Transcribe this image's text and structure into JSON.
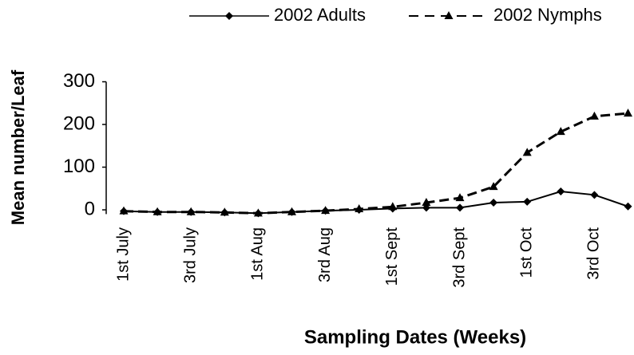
{
  "chart_data": {
    "type": "line",
    "x_label": "Sampling Dates (Weeks)",
    "y_label": "Mean number/Leaf",
    "categories": [
      "1st July",
      null,
      "3rd July",
      null,
      "1st Aug",
      null,
      "3rd Aug",
      null,
      "1st Sept",
      null,
      "3rd Sept",
      null,
      "1st Oct",
      null,
      "3rd Oct",
      null
    ],
    "series": [
      {
        "name": "2002 Adults",
        "color": "#000000",
        "line_style": "solid",
        "marker": "diamond",
        "values": [
          -3,
          -5,
          -5,
          -6,
          -8,
          -5,
          -2,
          0,
          3,
          5,
          5,
          17,
          19,
          43,
          35,
          8
        ]
      },
      {
        "name": "2002 Nymphs",
        "color": "#000000",
        "line_style": "dashed",
        "marker": "triangle",
        "values": [
          -3,
          -5,
          -5,
          -6,
          -8,
          -5,
          -2,
          2,
          7,
          17,
          28,
          54,
          134,
          183,
          219,
          226
        ]
      }
    ],
    "ylim": [
      -10,
      300
    ],
    "yticks": [
      0,
      100,
      200,
      300
    ],
    "grid": false,
    "legend": "top"
  }
}
